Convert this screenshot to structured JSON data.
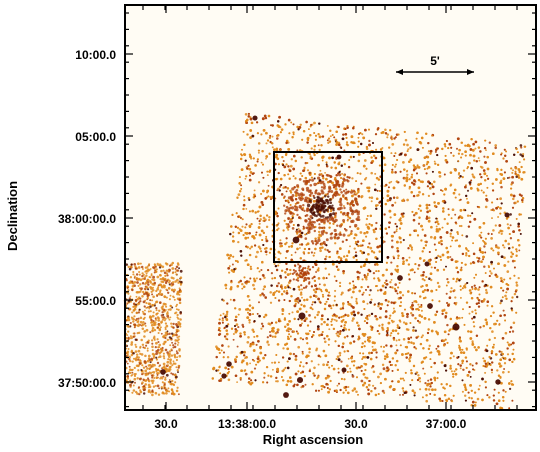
{
  "figure": {
    "x_axis_title": "Right ascension",
    "y_axis_title": "Declination",
    "x_tick_labels": [
      "30.0",
      "13:38:00.0",
      "30.0",
      "37:00.0"
    ],
    "y_tick_labels": [
      "10:00.0",
      "05:00.0",
      "38:00:00.0",
      "55:00.0",
      "37:50:00.0"
    ],
    "scale_bar_label": "5'",
    "colors": {
      "background": "#fffcf4",
      "emission_low": "#e08a1c",
      "emission_mid": "#b0420c",
      "emission_high": "#4a0e04",
      "frame": "#000000"
    }
  }
}
